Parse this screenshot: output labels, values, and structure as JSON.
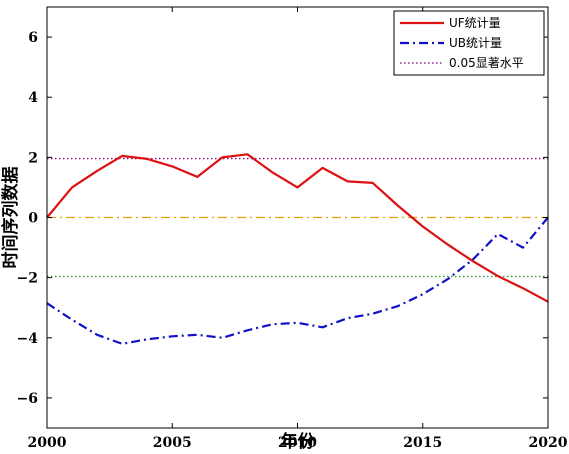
{
  "chart_data": {
    "type": "line",
    "xlabel": "年份",
    "ylabel": "时间序列数据",
    "xlim": [
      2000,
      2020
    ],
    "ylim": [
      -7,
      7
    ],
    "xticks": [
      2000,
      2005,
      2010,
      2015,
      2020
    ],
    "yticks": [
      -6,
      -4,
      -2,
      0,
      2,
      4,
      6
    ],
    "xtick_labels": [
      "2000",
      "2005",
      "2010",
      "2015",
      "2020"
    ],
    "ytick_labels": [
      "−6",
      "−4",
      "−2",
      "0",
      "2",
      "4",
      "6"
    ],
    "legend_position": "top-right",
    "grid": false,
    "series": [
      {
        "name": "UF统计量",
        "color": "#dd1111",
        "style": "solid",
        "x": [
          2000,
          2001,
          2002,
          2003,
          2004,
          2005,
          2006,
          2007,
          2008,
          2009,
          2010,
          2011,
          2012,
          2013,
          2014,
          2015,
          2016,
          2017,
          2018,
          2019,
          2020
        ],
        "y": [
          0.0,
          1.0,
          1.55,
          2.05,
          1.95,
          1.7,
          1.35,
          2.0,
          2.1,
          1.5,
          1.0,
          1.65,
          1.2,
          1.15,
          0.4,
          -0.3,
          -0.9,
          -1.45,
          -1.95,
          -2.35,
          -2.8
        ]
      },
      {
        "name": "UB统计量",
        "color": "#1111cc",
        "style": "dashdot",
        "x": [
          2000,
          2001,
          2002,
          2003,
          2004,
          2005,
          2006,
          2007,
          2008,
          2009,
          2010,
          2011,
          2012,
          2013,
          2014,
          2015,
          2016,
          2017,
          2018,
          2019,
          2020
        ],
        "y": [
          -2.85,
          -3.4,
          -3.9,
          -4.2,
          -4.05,
          -3.95,
          -3.9,
          -4.0,
          -3.75,
          -3.55,
          -3.5,
          -3.65,
          -3.35,
          -3.2,
          -2.95,
          -2.55,
          -2.05,
          -1.4,
          -0.55,
          -1.0,
          0.0
        ]
      }
    ],
    "reference_lines": [
      {
        "name": "0.05显著水平",
        "y": 1.96,
        "color": "#800080",
        "style": "dotted",
        "in_legend": true
      },
      {
        "y": 0,
        "color": "#e8a000",
        "style": "dashdot",
        "in_legend": false
      },
      {
        "y": -1.96,
        "color": "#2e9a2e",
        "style": "dotted",
        "in_legend": false
      }
    ]
  }
}
